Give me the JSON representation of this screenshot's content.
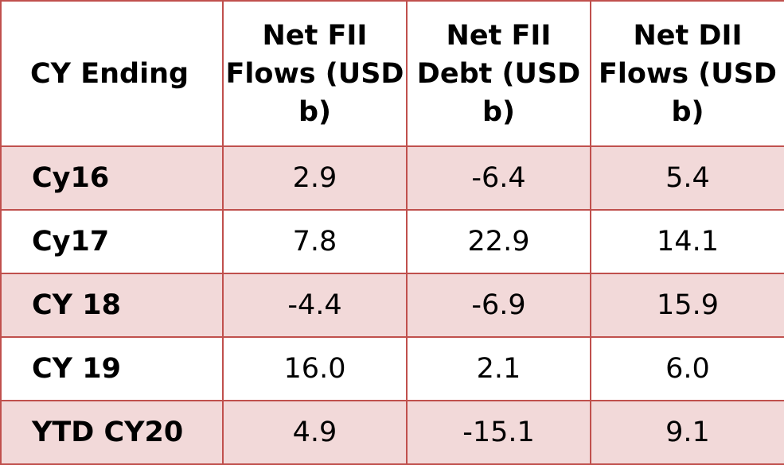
{
  "table": {
    "headers": [
      "CY Ending",
      "Net FII Flows (USD b)",
      "Net FII Debt (USD b)",
      "Net DII Flows (USD b)"
    ],
    "rows": [
      {
        "label": "Cy16",
        "fii_flows": "2.9",
        "fii_debt": "-6.4",
        "dii_flows": "5.4",
        "shaded": true
      },
      {
        "label": "Cy17",
        "fii_flows": "7.8",
        "fii_debt": "22.9",
        "dii_flows": "14.1",
        "shaded": false
      },
      {
        "label": "CY 18",
        "fii_flows": "-4.4",
        "fii_debt": "-6.9",
        "dii_flows": "15.9",
        "shaded": true
      },
      {
        "label": "CY 19",
        "fii_flows": "16.0",
        "fii_debt": "2.1",
        "dii_flows": "6.0",
        "shaded": false
      },
      {
        "label": "YTD CY20",
        "fii_flows": "4.9",
        "fii_debt": "-15.1",
        "dii_flows": "9.1",
        "shaded": true
      }
    ]
  },
  "colors": {
    "border": "#c0504d",
    "shaded_row": "#f2d9d9",
    "plain_row": "#ffffff"
  }
}
